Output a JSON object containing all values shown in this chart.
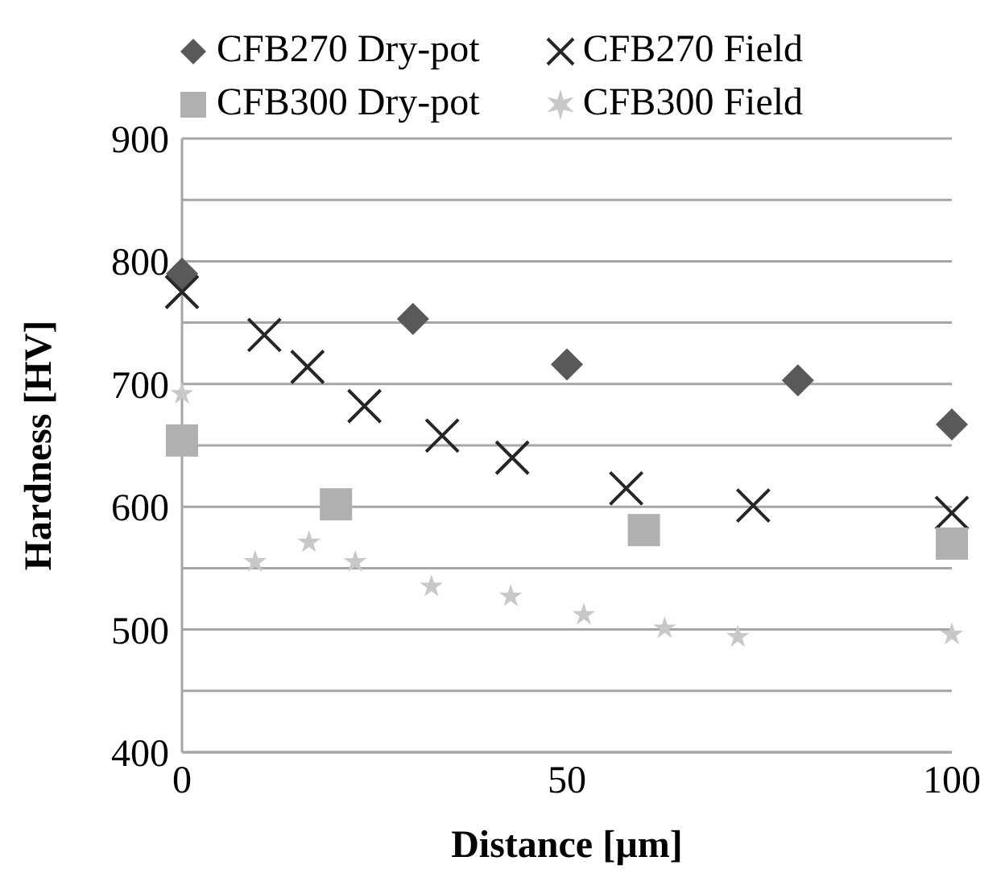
{
  "chart_data": {
    "type": "scatter",
    "xlabel": "Distance [µm]",
    "ylabel": "Hardness [HV]",
    "xlim": [
      0,
      100
    ],
    "xticks": [
      0,
      50,
      100
    ],
    "ylim": [
      400,
      900
    ],
    "yticks": [
      400,
      {
        "value": 450,
        "label": null
      },
      500,
      {
        "value": 550,
        "label": null
      },
      600,
      {
        "value": 650,
        "label": null
      },
      700,
      {
        "value": 750,
        "label": null
      },
      800,
      {
        "value": 850,
        "label": null
      },
      900
    ],
    "grid": "y",
    "legend": "top",
    "series": [
      {
        "name": "CFB270 Dry-pot",
        "color": "#595959",
        "marker": "diamond",
        "x": [
          0,
          30,
          50,
          80,
          100
        ],
        "values": [
          790,
          753,
          716,
          703,
          667
        ]
      },
      {
        "name": "CFB270 Field",
        "color": "#262626",
        "marker": "cross",
        "x": [
          0,
          10.7,
          16.3,
          23.7,
          33.8,
          42.9,
          57.7,
          74.2,
          100
        ],
        "values": [
          775,
          740,
          714,
          682,
          658,
          640,
          615,
          601,
          595
        ]
      },
      {
        "name": "CFB300 Dry-pot",
        "color": "#b0b0b0",
        "marker": "square",
        "x": [
          0,
          20,
          60,
          100
        ],
        "values": [
          654,
          602,
          581,
          570
        ]
      },
      {
        "name": "CFB300 Field",
        "color": "#c8c8c8",
        "marker": "star",
        "x": [
          0,
          9.5,
          16.5,
          22.5,
          32.4,
          42.7,
          52.2,
          62.7,
          72.2,
          100
        ],
        "values": [
          692,
          555,
          571,
          555,
          535,
          527,
          512,
          501,
          494,
          496
        ]
      }
    ]
  }
}
